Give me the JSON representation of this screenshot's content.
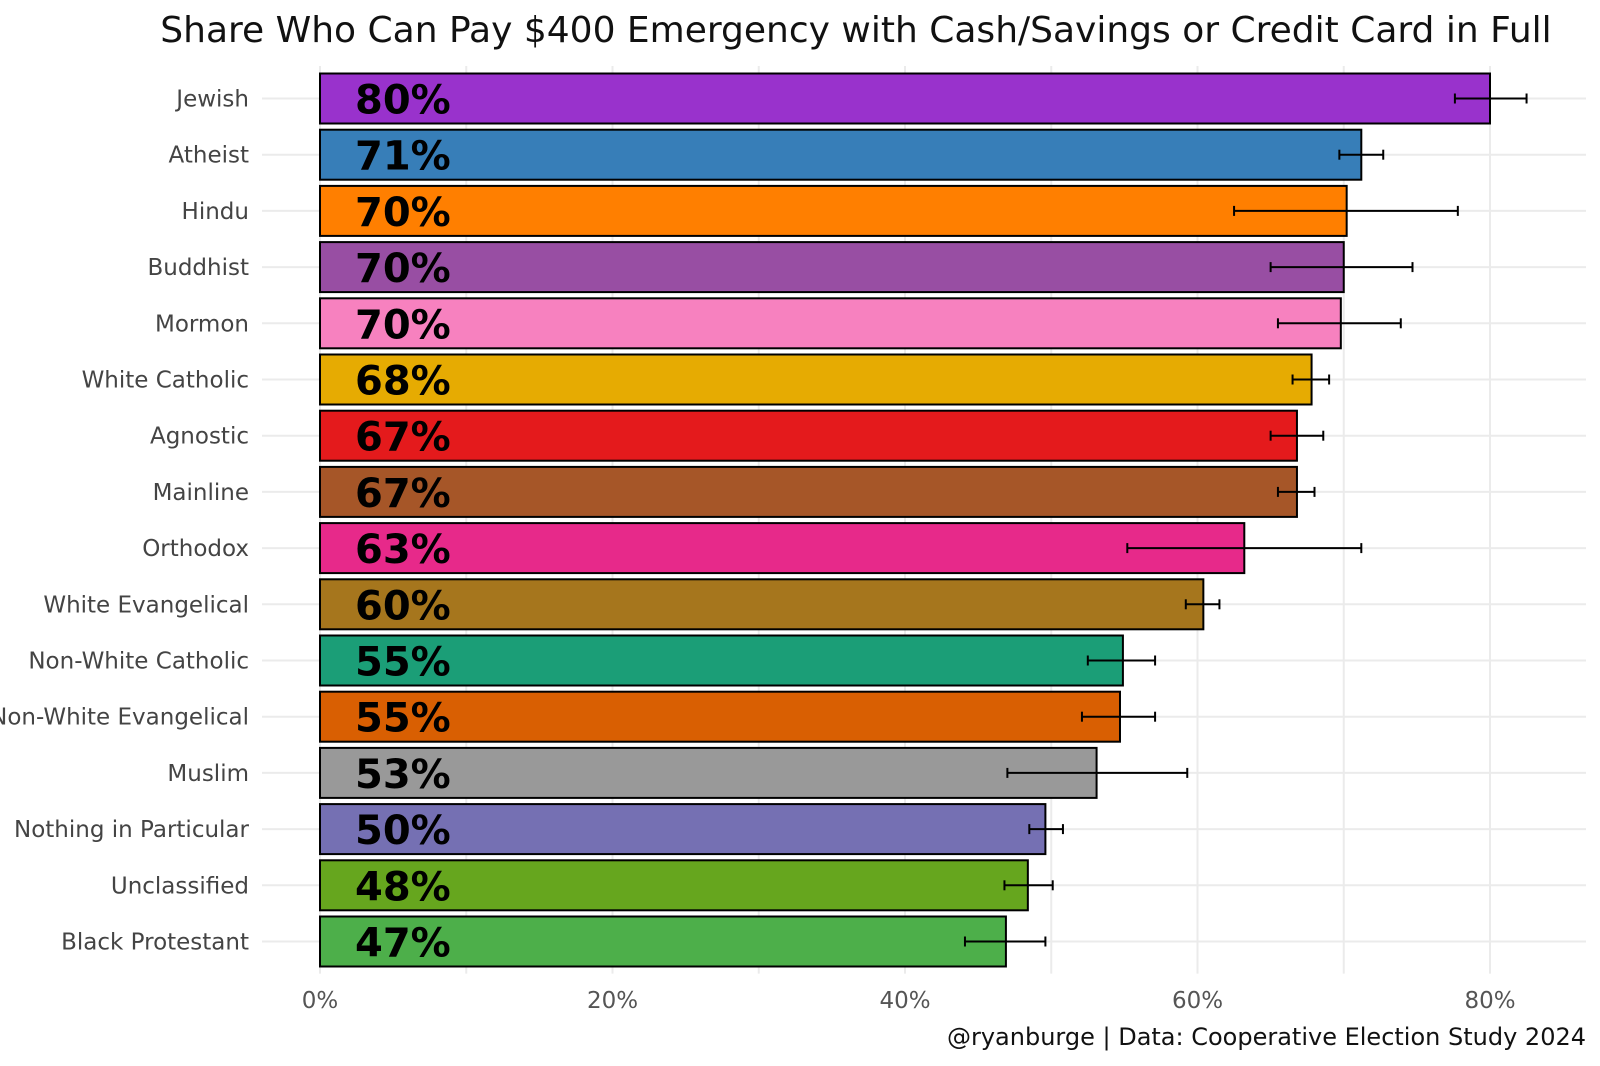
{
  "chart_data": {
    "type": "bar",
    "orientation": "horizontal",
    "title": "Share Who Can Pay $400 Emergency with Cash/Savings or Credit Card in Full",
    "caption": "@ryanburge | Data: Cooperative Election Study 2024",
    "xlim": [
      0,
      0.85
    ],
    "x_ticks": [
      0,
      0.2,
      0.4,
      0.6,
      0.8
    ],
    "x_tick_labels": [
      "0%",
      "20%",
      "40%",
      "60%",
      "80%"
    ],
    "grid": true,
    "legend": "none",
    "categories": [
      "Jewish",
      "Atheist",
      "Hindu",
      "Buddhist",
      "Mormon",
      "White Catholic",
      "Agnostic",
      "Mainline",
      "Orthodox",
      "White Evangelical",
      "Non-White Catholic",
      "Non-White Evangelical",
      "Muslim",
      "Nothing in Particular",
      "Unclassified",
      "Black Protestant"
    ],
    "values": [
      0.8,
      0.712,
      0.702,
      0.7,
      0.698,
      0.678,
      0.668,
      0.668,
      0.632,
      0.604,
      0.549,
      0.547,
      0.531,
      0.496,
      0.484,
      0.469
    ],
    "labels": [
      "80%",
      "71%",
      "70%",
      "70%",
      "70%",
      "68%",
      "67%",
      "67%",
      "63%",
      "60%",
      "55%",
      "55%",
      "53%",
      "50%",
      "48%",
      "47%"
    ],
    "error_low": [
      0.776,
      0.697,
      0.625,
      0.65,
      0.655,
      0.665,
      0.65,
      0.655,
      0.552,
      0.592,
      0.525,
      0.521,
      0.47,
      0.485,
      0.468,
      0.441
    ],
    "error_high": [
      0.825,
      0.727,
      0.778,
      0.747,
      0.739,
      0.69,
      0.686,
      0.68,
      0.712,
      0.615,
      0.571,
      0.571,
      0.593,
      0.508,
      0.501,
      0.496
    ],
    "colors": [
      "#9932CC",
      "#377EB8",
      "#FF7F00",
      "#984EA3",
      "#F781BF",
      "#E6AB02",
      "#E41A1C",
      "#A65628",
      "#E7298A",
      "#A6761D",
      "#1B9E77",
      "#D95F02",
      "#999999",
      "#7570B3",
      "#66A61E",
      "#4DAF4A"
    ]
  }
}
